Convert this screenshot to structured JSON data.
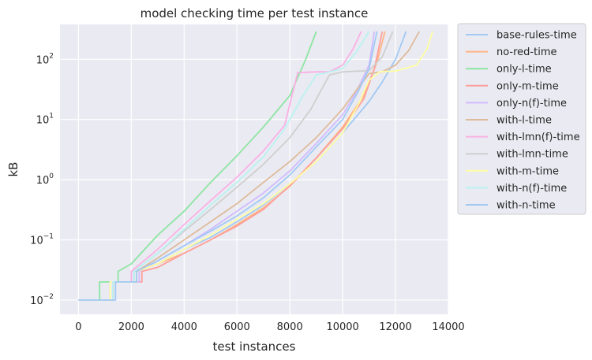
{
  "chart_data": {
    "type": "line",
    "title": "model checking time per test instance",
    "xlabel": "test instances",
    "ylabel": "kB",
    "xlim": [
      -700,
      14000
    ],
    "ylim": [
      0.0058,
      380
    ],
    "yscale": "log",
    "xticks": [
      0,
      2000,
      4000,
      6000,
      8000,
      10000,
      12000,
      14000
    ],
    "yticks": [
      {
        "value": 0.01,
        "base": "10",
        "exp": "−2"
      },
      {
        "value": 0.1,
        "base": "10",
        "exp": "−1"
      },
      {
        "value": 1,
        "base": "10",
        "exp": "0"
      },
      {
        "value": 10,
        "base": "10",
        "exp": "1"
      },
      {
        "value": 100,
        "base": "10",
        "exp": "2"
      }
    ],
    "grid": true,
    "legend_position": "outside-right",
    "series": [
      {
        "name": "base-rules-time",
        "color": "#a1c9f4",
        "points": [
          [
            0,
            0.01
          ],
          [
            1300,
            0.01
          ],
          [
            1300,
            0.02
          ],
          [
            2100,
            0.02
          ],
          [
            2100,
            0.03
          ],
          [
            3000,
            0.04
          ],
          [
            4000,
            0.07
          ],
          [
            5000,
            0.11
          ],
          [
            6000,
            0.2
          ],
          [
            7000,
            0.38
          ],
          [
            8000,
            0.85
          ],
          [
            9000,
            2.0
          ],
          [
            10000,
            6.0
          ],
          [
            11000,
            20
          ],
          [
            11500,
            42
          ],
          [
            12000,
            100
          ],
          [
            12400,
            290
          ]
        ]
      },
      {
        "name": "no-red-time",
        "color": "#ffb482",
        "points": [
          [
            0,
            0.01
          ],
          [
            1300,
            0.01
          ],
          [
            1300,
            0.02
          ],
          [
            2200,
            0.02
          ],
          [
            2200,
            0.03
          ],
          [
            3000,
            0.04
          ],
          [
            4000,
            0.06
          ],
          [
            5000,
            0.1
          ],
          [
            6000,
            0.18
          ],
          [
            7000,
            0.34
          ],
          [
            8000,
            0.78
          ],
          [
            9000,
            2.3
          ],
          [
            10000,
            7.5
          ],
          [
            10800,
            25
          ],
          [
            11300,
            90
          ],
          [
            11600,
            290
          ]
        ]
      },
      {
        "name": "only-l-time",
        "color": "#8de5a1",
        "points": [
          [
            0,
            0.01
          ],
          [
            800,
            0.01
          ],
          [
            800,
            0.02
          ],
          [
            1500,
            0.02
          ],
          [
            1500,
            0.03
          ],
          [
            2000,
            0.04
          ],
          [
            3000,
            0.12
          ],
          [
            4000,
            0.3
          ],
          [
            5000,
            0.9
          ],
          [
            6000,
            2.5
          ],
          [
            7000,
            7.5
          ],
          [
            8000,
            25
          ],
          [
            8600,
            100
          ],
          [
            9000,
            290
          ]
        ]
      },
      {
        "name": "only-m-time",
        "color": "#ff9f9b",
        "points": [
          [
            0,
            0.01
          ],
          [
            1300,
            0.01
          ],
          [
            1300,
            0.02
          ],
          [
            2400,
            0.02
          ],
          [
            2400,
            0.03
          ],
          [
            3000,
            0.035
          ],
          [
            4000,
            0.06
          ],
          [
            5000,
            0.1
          ],
          [
            6000,
            0.17
          ],
          [
            7000,
            0.32
          ],
          [
            8000,
            0.8
          ],
          [
            9000,
            2.3
          ],
          [
            10000,
            7.0
          ],
          [
            10800,
            22
          ],
          [
            11200,
            70
          ],
          [
            11500,
            290
          ]
        ]
      },
      {
        "name": "only-n(f)-time",
        "color": "#d0bbff",
        "points": [
          [
            0,
            0.01
          ],
          [
            1200,
            0.01
          ],
          [
            1200,
            0.02
          ],
          [
            2300,
            0.02
          ],
          [
            2300,
            0.03
          ],
          [
            3000,
            0.045
          ],
          [
            4000,
            0.08
          ],
          [
            5000,
            0.15
          ],
          [
            6000,
            0.3
          ],
          [
            7000,
            0.6
          ],
          [
            8000,
            1.4
          ],
          [
            9000,
            4
          ],
          [
            10000,
            12
          ],
          [
            10500,
            28
          ],
          [
            11000,
            80
          ],
          [
            11200,
            290
          ]
        ]
      },
      {
        "name": "with-l-time",
        "color": "#debb9b",
        "points": [
          [
            0,
            0.01
          ],
          [
            1200,
            0.01
          ],
          [
            1200,
            0.02
          ],
          [
            2200,
            0.02
          ],
          [
            2200,
            0.03
          ],
          [
            3000,
            0.05
          ],
          [
            4000,
            0.1
          ],
          [
            5000,
            0.2
          ],
          [
            6000,
            0.4
          ],
          [
            7000,
            0.9
          ],
          [
            8000,
            2.0
          ],
          [
            9000,
            5.0
          ],
          [
            10000,
            15
          ],
          [
            10500,
            30
          ],
          [
            11000,
            58
          ],
          [
            11500,
            62
          ],
          [
            12000,
            80
          ],
          [
            12500,
            140
          ],
          [
            12900,
            290
          ]
        ]
      },
      {
        "name": "with-lmn(f)-time",
        "color": "#fab0e4",
        "points": [
          [
            0,
            0.01
          ],
          [
            1200,
            0.01
          ],
          [
            1200,
            0.02
          ],
          [
            2000,
            0.02
          ],
          [
            2000,
            0.03
          ],
          [
            3000,
            0.07
          ],
          [
            4000,
            0.18
          ],
          [
            5000,
            0.45
          ],
          [
            6000,
            1.1
          ],
          [
            7000,
            3.0
          ],
          [
            7800,
            8.0
          ],
          [
            8300,
            60
          ],
          [
            9000,
            62
          ],
          [
            9500,
            62
          ],
          [
            10000,
            80
          ],
          [
            10400,
            150
          ],
          [
            10700,
            290
          ]
        ]
      },
      {
        "name": "with-lmn-time",
        "color": "#cfcfcf",
        "points": [
          [
            0,
            0.01
          ],
          [
            1200,
            0.01
          ],
          [
            1200,
            0.02
          ],
          [
            2100,
            0.02
          ],
          [
            2100,
            0.03
          ],
          [
            3000,
            0.06
          ],
          [
            4000,
            0.14
          ],
          [
            5000,
            0.32
          ],
          [
            6000,
            0.75
          ],
          [
            7000,
            1.8
          ],
          [
            8000,
            5.0
          ],
          [
            8800,
            15
          ],
          [
            9500,
            55
          ],
          [
            10000,
            62
          ],
          [
            11000,
            65
          ],
          [
            11500,
            110
          ],
          [
            11900,
            290
          ]
        ]
      },
      {
        "name": "with-m-time",
        "color": "#fffea3",
        "points": [
          [
            0,
            0.01
          ],
          [
            1200,
            0.01
          ],
          [
            1200,
            0.02
          ],
          [
            2200,
            0.02
          ],
          [
            2200,
            0.03
          ],
          [
            3000,
            0.04
          ],
          [
            4000,
            0.07
          ],
          [
            5000,
            0.12
          ],
          [
            6000,
            0.22
          ],
          [
            7000,
            0.4
          ],
          [
            8000,
            0.85
          ],
          [
            9000,
            2.0
          ],
          [
            10000,
            6.0
          ],
          [
            10600,
            18
          ],
          [
            11000,
            45
          ],
          [
            11400,
            62
          ],
          [
            12000,
            64
          ],
          [
            12800,
            80
          ],
          [
            13200,
            150
          ],
          [
            13400,
            290
          ]
        ]
      },
      {
        "name": "with-n(f)-time",
        "color": "#b9f2f0",
        "points": [
          [
            0,
            0.01
          ],
          [
            1300,
            0.01
          ],
          [
            1300,
            0.02
          ],
          [
            2100,
            0.02
          ],
          [
            2100,
            0.03
          ],
          [
            3000,
            0.06
          ],
          [
            4000,
            0.15
          ],
          [
            5000,
            0.38
          ],
          [
            6000,
            0.9
          ],
          [
            7000,
            2.4
          ],
          [
            7800,
            7.0
          ],
          [
            8500,
            25
          ],
          [
            9000,
            55
          ],
          [
            9500,
            62
          ],
          [
            10000,
            70
          ],
          [
            10500,
            130
          ],
          [
            11000,
            290
          ]
        ]
      },
      {
        "name": "with-n-time",
        "color": "#a1c9f4",
        "points": [
          [
            0,
            0.01
          ],
          [
            1400,
            0.01
          ],
          [
            1400,
            0.02
          ],
          [
            2200,
            0.02
          ],
          [
            2200,
            0.03
          ],
          [
            3000,
            0.045
          ],
          [
            4000,
            0.08
          ],
          [
            5000,
            0.14
          ],
          [
            6000,
            0.25
          ],
          [
            7000,
            0.5
          ],
          [
            8000,
            1.2
          ],
          [
            9000,
            3.5
          ],
          [
            10000,
            10
          ],
          [
            10600,
            30
          ],
          [
            11000,
            70
          ],
          [
            11300,
            290
          ]
        ]
      }
    ]
  }
}
